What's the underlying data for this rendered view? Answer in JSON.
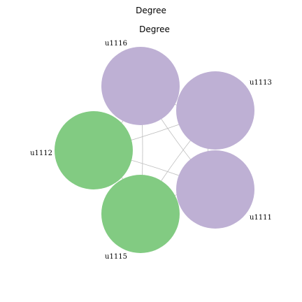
{
  "title": "Degree",
  "subtitle": "Degree",
  "colors": {
    "purple": "#beb0d4",
    "green": "#82cb82",
    "edge": "#bdbdbd"
  },
  "nodes": [
    {
      "id": "u1116",
      "label": "u1116",
      "group": "purple"
    },
    {
      "id": "u1113",
      "label": "u1113",
      "group": "purple"
    },
    {
      "id": "u1111",
      "label": "u1111",
      "group": "purple"
    },
    {
      "id": "u1115",
      "label": "u1115",
      "group": "green"
    },
    {
      "id": "u1112",
      "label": "u1112",
      "group": "green"
    }
  ],
  "edges": [
    [
      "u1116",
      "u1113"
    ],
    [
      "u1116",
      "u1111"
    ],
    [
      "u1116",
      "u1115"
    ],
    [
      "u1116",
      "u1112"
    ],
    [
      "u1113",
      "u1111"
    ],
    [
      "u1113",
      "u1115"
    ],
    [
      "u1113",
      "u1112"
    ],
    [
      "u1111",
      "u1115"
    ],
    [
      "u1111",
      "u1112"
    ],
    [
      "u1115",
      "u1112"
    ]
  ]
}
